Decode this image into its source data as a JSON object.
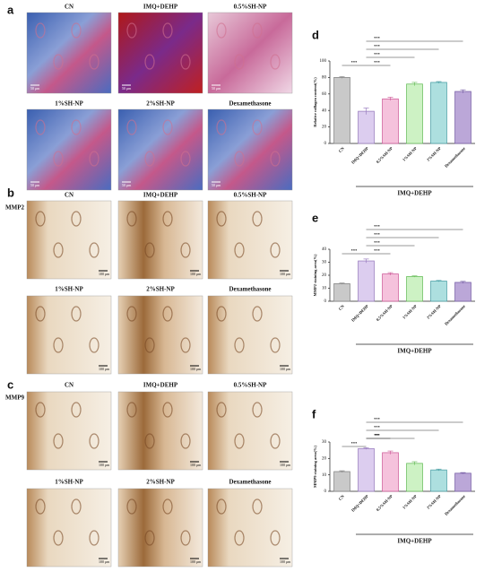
{
  "image_panels": [
    {
      "label": "a",
      "images": [
        {
          "title": "CN",
          "scale": "50 μm"
        },
        {
          "title": "IMQ+DEHP",
          "scale": "50 μm"
        },
        {
          "title": "0.5%SH-NP",
          "scale": "50 μm"
        },
        {
          "title": "1%SH-NP",
          "scale": "50 μm"
        },
        {
          "title": "2%SH-NP",
          "scale": "50 μm"
        },
        {
          "title": "Dexamethasone",
          "scale": "50 μm"
        }
      ]
    },
    {
      "label": "b",
      "marker": "MMP2",
      "images": [
        {
          "title": "CN",
          "scale": "100 μm"
        },
        {
          "title": "IMQ+DEHP",
          "scale": "100 μm"
        },
        {
          "title": "0.5%SH-NP",
          "scale": "100 μm"
        },
        {
          "title": "1%SH-NP",
          "scale": "100 μm"
        },
        {
          "title": "2%SH-NP",
          "scale": "100 μm"
        },
        {
          "title": "Dexamethasone",
          "scale": "100 μm"
        }
      ]
    },
    {
      "label": "c",
      "marker": "MMP9",
      "images": [
        {
          "title": "CN",
          "scale": "100 μm"
        },
        {
          "title": "IMQ+DEHP",
          "scale": "100 μm"
        },
        {
          "title": "0.5%SH-NP",
          "scale": "100 μm"
        },
        {
          "title": "1%SH-NP",
          "scale": "100 μm"
        },
        {
          "title": "2%SH-NP",
          "scale": "100 μm"
        },
        {
          "title": "Dexamethasone",
          "scale": "100 μm"
        }
      ]
    }
  ],
  "chart_data": [
    {
      "type": "bar",
      "title": "d",
      "ylabel": "Relative collagen content(%)",
      "group_label": "IMQ+DEHP",
      "categories": [
        "CN",
        "IMQ+DEHP",
        "0.5%SH-NP",
        "1%SH-NP",
        "2%SH-NP",
        "Dexamethasone"
      ],
      "values": [
        80,
        39,
        54,
        72,
        74,
        63
      ],
      "errors": [
        1,
        4,
        2,
        2,
        1,
        2
      ],
      "colors": [
        "#c9c9c9",
        "#dccdef",
        "#f5c2dc",
        "#cdf2c4",
        "#addfdf",
        "#bba7d8"
      ],
      "edge_colors": [
        "#888888",
        "#9b7fc0",
        "#d0609c",
        "#6cbf5f",
        "#4fa3a8",
        "#7b62a8"
      ],
      "ylim": [
        0,
        100
      ],
      "yticks": [
        0,
        20,
        40,
        60,
        80,
        100
      ],
      "annotations": [
        "***",
        "***",
        "***",
        "***",
        "***"
      ]
    },
    {
      "type": "bar",
      "title": "e",
      "ylabel": "MMP2 staining area(%)",
      "group_label": "IMQ+DEHP",
      "categories": [
        "CN",
        "IMQ+DEHP",
        "0.5%SH-NP",
        "1%SH-NP",
        "2%SH-NP",
        "Dexamethasone"
      ],
      "values": [
        13.5,
        31,
        21,
        19,
        15.5,
        14.5
      ],
      "errors": [
        0.5,
        1.5,
        1,
        0.5,
        0.5,
        0.8
      ],
      "colors": [
        "#c9c9c9",
        "#dccdef",
        "#f5c2dc",
        "#cdf2c4",
        "#addfdf",
        "#bba7d8"
      ],
      "edge_colors": [
        "#888888",
        "#9b7fc0",
        "#d0609c",
        "#6cbf5f",
        "#4fa3a8",
        "#7b62a8"
      ],
      "ylim": [
        0,
        40
      ],
      "yticks": [
        0,
        10,
        20,
        30,
        40
      ],
      "annotations": [
        "***",
        "***",
        "***",
        "***",
        "***"
      ]
    },
    {
      "type": "bar",
      "title": "f",
      "ylabel": "MMP9 staining area(%)",
      "group_label": "IMQ+DEHP",
      "categories": [
        "CN",
        "IMQ+DEHP",
        "0.5%SH-NP",
        "1%SH-NP",
        "2%SH-NP",
        "Dexamethasone"
      ],
      "values": [
        12,
        26,
        23.5,
        17,
        13,
        11
      ],
      "errors": [
        0.5,
        0.5,
        1,
        1,
        0.5,
        0.4
      ],
      "colors": [
        "#c9c9c9",
        "#dccdef",
        "#f5c2dc",
        "#cdf2c4",
        "#addfdf",
        "#bba7d8"
      ],
      "edge_colors": [
        "#888888",
        "#9b7fc0",
        "#d0609c",
        "#6cbf5f",
        "#4fa3a8",
        "#7b62a8"
      ],
      "ylim": [
        0,
        30
      ],
      "yticks": [
        0,
        10,
        20,
        30
      ],
      "annotations": [
        "***",
        "***",
        "**",
        "***",
        "***",
        "***"
      ]
    }
  ]
}
